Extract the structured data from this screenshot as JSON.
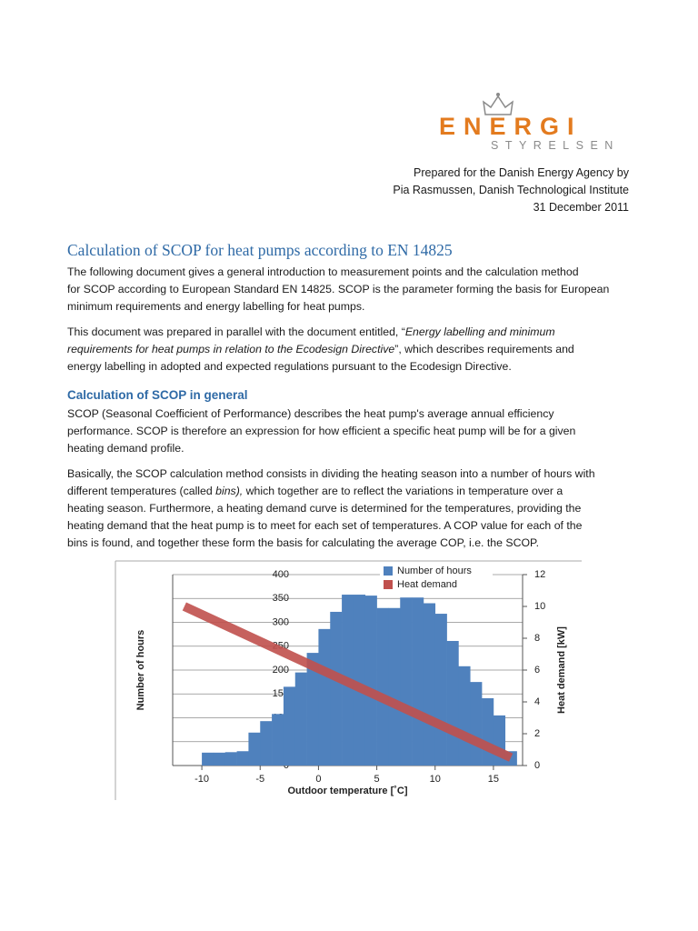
{
  "header": {
    "logo": {
      "name": "ENERGI",
      "subtitle": "STYRELSEN"
    },
    "prepared": [
      "Prepared for the Danish Energy Agency by",
      "Pia Rasmussen, Danish Technological Institute",
      "31 December 2011"
    ]
  },
  "title": "Calculation of SCOP for heat pumps according to EN 14825",
  "paragraphs": [
    [
      [
        "The following document gives a general introduction to measurement points and the calculation method"
      ],
      [
        "for SCOP according to European Standard EN 14825. SCOP is the parameter forming the basis for European"
      ],
      [
        "minimum requirements and energy labelling for heat pumps."
      ]
    ],
    [
      [
        "This document was prepared in parallel with the document entitled, “",
        {
          "text": "Energy labelling and minimum",
          "style": "italic"
        }
      ],
      [
        {
          "text": "requirements for heat pumps in relation to the Ecodesign Directive",
          "style": "italic"
        },
        "”, which describes requirements and"
      ],
      [
        "energy labelling in adopted and expected regulations pursuant to the Ecodesign Directive."
      ]
    ]
  ],
  "section": {
    "heading": "Calculation of SCOP in general",
    "paragraphs": [
      [
        [
          "SCOP (Seasonal Coefficient of Performance) describes the heat pump's average annual efficiency"
        ],
        [
          "performance. SCOP is therefore an expression for how efficient a specific heat pump will be for a given"
        ],
        [
          "heating demand profile."
        ]
      ],
      [
        [
          "Basically, the SCOP calculation method consists in dividing the heating season into a number of hours with"
        ],
        [
          "different temperatures (called ",
          {
            "text": "bins),",
            "style": "italic"
          },
          " which together are to reflect the variations in temperature over a"
        ],
        [
          "heating season. Furthermore, a heating demand curve is determined for the temperatures, providing the"
        ],
        [
          "heating demand that the heat pump is to meet for each set of temperatures. A COP value for each of the"
        ],
        [
          "bins is found, and together these form the basis for calculating the average COP, i.e. the SCOP."
        ]
      ]
    ]
  },
  "chart_data": {
    "type": "histogram",
    "xlabel": "Outdoor temperature [˚C]",
    "ylabel": "Number of hours",
    "y2label": "Heat demand [kW]",
    "bins": [
      -10,
      -9,
      -8,
      -7,
      -6,
      -5,
      -4,
      -3,
      -2,
      -1,
      0,
      1,
      2,
      3,
      4,
      5,
      6,
      7,
      8,
      9,
      10,
      11,
      12,
      13,
      14,
      15,
      16,
      17
    ],
    "series": [
      {
        "name": "Number of hours",
        "color": "#4f81bd",
        "values": [
          27,
          27,
          28,
          30,
          69,
          93,
          108,
          165,
          195,
          236,
          286,
          322,
          358,
          358,
          356,
          330,
          330,
          352,
          352,
          340,
          318,
          261,
          208,
          175,
          141,
          105,
          30
        ]
      },
      {
        "name": "Heat demand",
        "color": "#c0504d",
        "axis": "y2",
        "x": [
          -11.5,
          16.5
        ],
        "values": [
          10,
          0.5
        ]
      }
    ],
    "xlim": [
      -12.5,
      17.5
    ],
    "xticks": [
      -10,
      -5,
      0,
      5,
      10,
      15
    ],
    "ylim": [
      0,
      400
    ],
    "yticks": [
      0,
      50,
      100,
      150,
      200,
      250,
      300,
      350,
      400
    ],
    "y2lim": [
      0,
      12
    ],
    "y2ticks": [
      0,
      2,
      4,
      6,
      8,
      10,
      12
    ],
    "grid": true,
    "legend": "top"
  }
}
